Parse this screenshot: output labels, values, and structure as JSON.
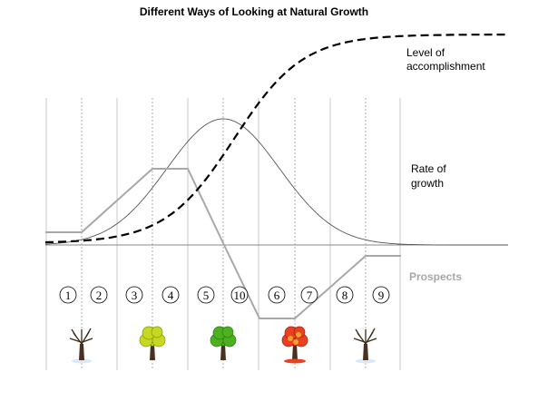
{
  "title": "Different Ways of Looking at Natural Growth",
  "curves": {
    "accomplishment_label": [
      "Level of",
      "accomplishment"
    ],
    "growth_rate_label": [
      "Rate of",
      "growth"
    ],
    "prospects_label": "Prospects"
  },
  "stages": [
    "1",
    "2",
    "3",
    "4",
    "5",
    "10",
    "6",
    "7",
    "8",
    "9"
  ],
  "seasons": [
    {
      "name": "winter-tree-icon",
      "foliage": "#ffffff"
    },
    {
      "name": "spring-tree-icon",
      "foliage": "#c8d820"
    },
    {
      "name": "summer-tree-icon",
      "foliage": "#4cb020"
    },
    {
      "name": "autumn-tree-icon",
      "foliage": "#e84020"
    },
    {
      "name": "winter-tree-icon-2",
      "foliage": "#ffffff"
    }
  ],
  "colors": {
    "accomplishment": "#000000",
    "growth_rate": "#555555",
    "prospects": "#a8a8a8",
    "dividers": "#c8c8c8"
  }
}
